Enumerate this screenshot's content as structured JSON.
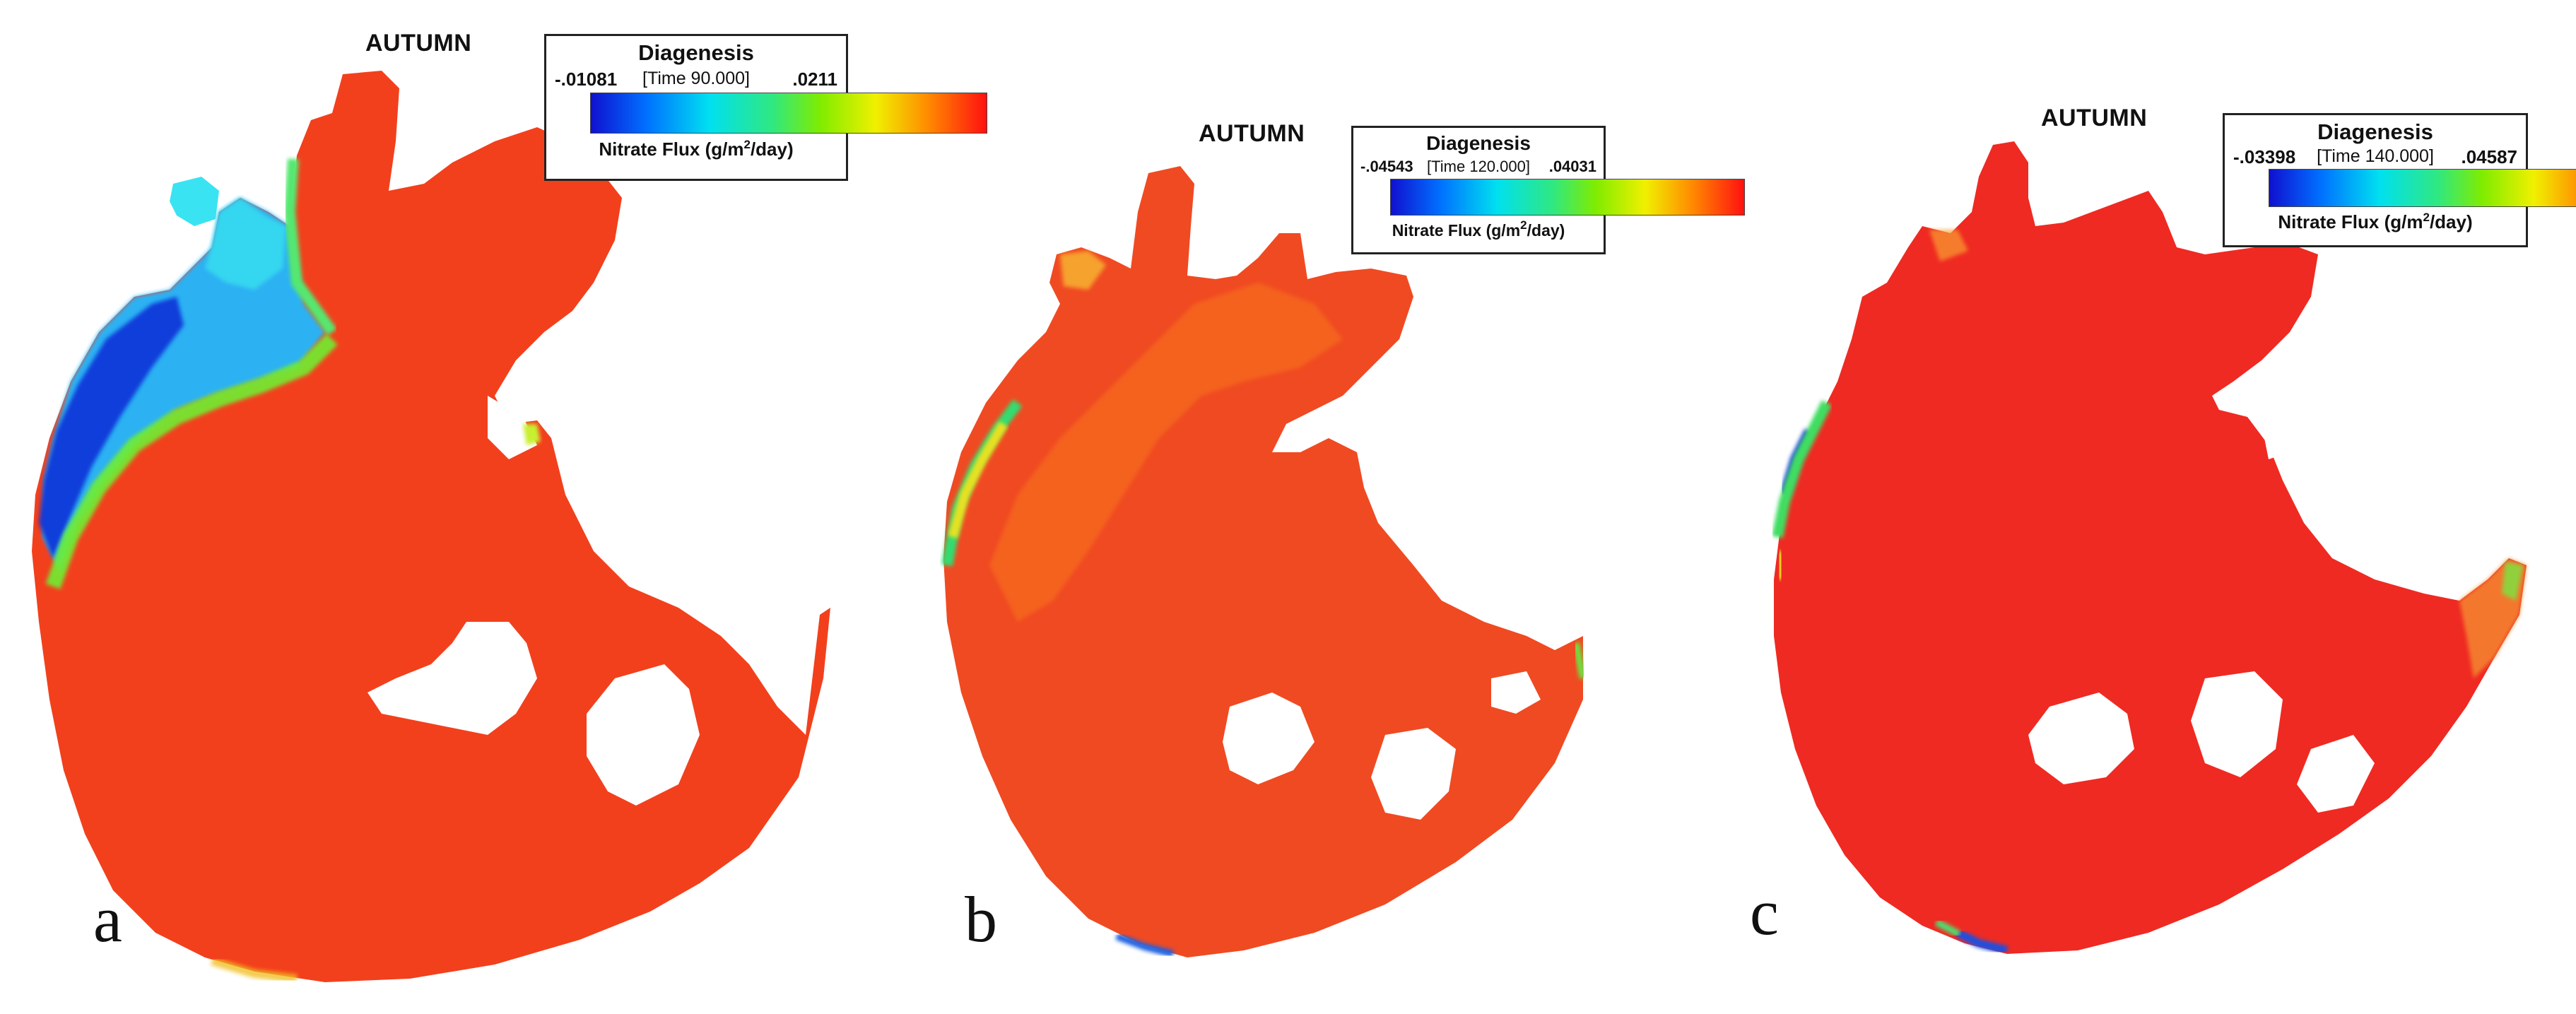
{
  "panels": [
    {
      "letter": "a",
      "season": "AUTUMN",
      "legend": {
        "title": "Diagenesis",
        "time": "[Time 90.000]",
        "min": "-.01081",
        "max": ".0211",
        "unit_prefix": "Nitrate Flux (g/m",
        "unit_sup": "2",
        "unit_suffix": "/day)"
      }
    },
    {
      "letter": "b",
      "season": "AUTUMN",
      "legend": {
        "title": "Diagenesis",
        "time": "[Time 120.000]",
        "min": "-.04543",
        "max": ".04031",
        "unit_prefix": "Nitrate Flux (g/m",
        "unit_sup": "2",
        "unit_suffix": "/day)"
      }
    },
    {
      "letter": "c",
      "season": "AUTUMN",
      "legend": {
        "title": "Diagenesis",
        "time": "[Time 140.000]",
        "min": "-.03398",
        "max": ".04587",
        "unit_prefix": "Nitrate Flux (g/m",
        "unit_sup": "2",
        "unit_suffix": "/day)"
      }
    }
  ],
  "colors": {
    "scale": [
      "#0000c8",
      "#0078ff",
      "#00e8ff",
      "#30f080",
      "#80f000",
      "#f8f000",
      "#ff8800",
      "#ff2020",
      "#ee1010"
    ],
    "dominant_red": "#f2401d",
    "dominant_red_c": "#ef2a22"
  }
}
